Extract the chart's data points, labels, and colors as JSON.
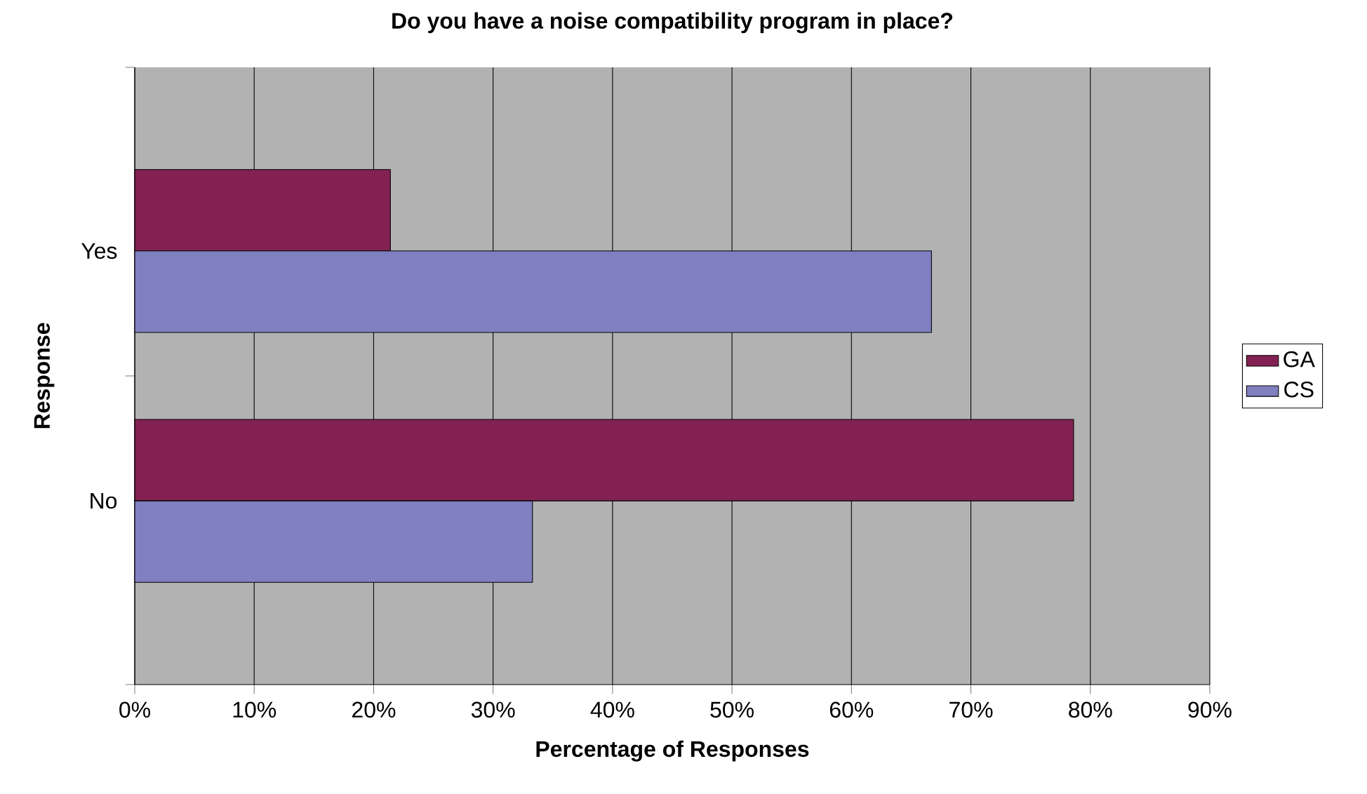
{
  "chart_data": {
    "type": "bar",
    "orientation": "horizontal",
    "title": "Do you have a noise compatibility program in place?",
    "xlabel": "Percentage of Responses",
    "ylabel": "Response",
    "categories": [
      "Yes",
      "No"
    ],
    "series": [
      {
        "name": "GA",
        "color": "#832252",
        "values": [
          21.4,
          78.6
        ]
      },
      {
        "name": "CS",
        "color": "#8080c0",
        "values": [
          66.7,
          33.3
        ]
      }
    ],
    "xlim": [
      0,
      90
    ],
    "xticks": [
      {
        "value": 0,
        "label": "0%"
      },
      {
        "value": 10,
        "label": "10%"
      },
      {
        "value": 20,
        "label": "20%"
      },
      {
        "value": 30,
        "label": "30%"
      },
      {
        "value": 40,
        "label": "40%"
      },
      {
        "value": 50,
        "label": "50%"
      },
      {
        "value": 60,
        "label": "60%"
      },
      {
        "value": 70,
        "label": "70%"
      },
      {
        "value": 80,
        "label": "80%"
      },
      {
        "value": 90,
        "label": "90%"
      }
    ],
    "grid": "x",
    "legend": "right"
  }
}
